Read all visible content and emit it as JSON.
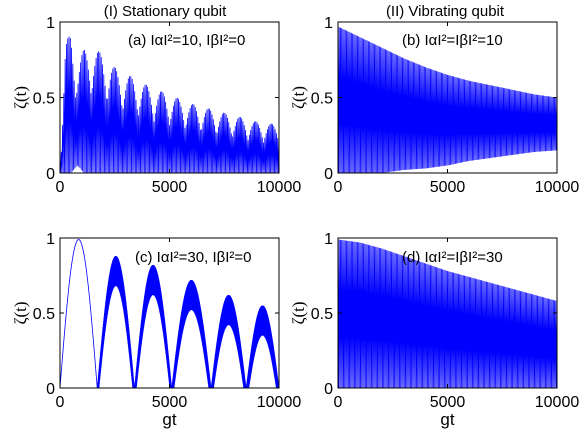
{
  "column_titles": [
    "(I) Stationary qubit",
    "(II) Vibrating qubit"
  ],
  "chart_data": [
    {
      "type": "line",
      "annotation": "(a) IαI²=10, IβI²=0",
      "xlabel": "",
      "ylabel": "ζ(t)",
      "xlim": [
        0,
        10000
      ],
      "ylim": [
        0,
        1
      ],
      "xticks": [
        "0",
        "5000",
        "10000"
      ],
      "yticks": [
        "0",
        "0.5",
        "1"
      ],
      "series_color": "#0000ff",
      "series": [
        {
          "x": [
            0,
            250,
            500,
            800,
            1100,
            1500,
            2000,
            2500,
            3000,
            4000,
            5000,
            6000,
            7000,
            8000,
            9000,
            10000
          ],
          "upper": [
            0,
            0.85,
            0.95,
            0.75,
            0.82,
            0.84,
            0.78,
            0.7,
            0.66,
            0.58,
            0.52,
            0.46,
            0.42,
            0.38,
            0.34,
            0.32
          ],
          "lower": [
            0,
            0.0,
            0.0,
            0.05,
            0.0,
            0.0,
            0.0,
            0.0,
            0.0,
            0.0,
            0.0,
            0.0,
            0.0,
            0.0,
            0.0,
            0.0
          ]
        }
      ]
    },
    {
      "type": "line",
      "annotation": "(b) IαI²=IβI²=10",
      "xlabel": "",
      "ylabel": "ζ(t)",
      "xlim": [
        0,
        10000
      ],
      "ylim": [
        0,
        1
      ],
      "xticks": [
        "0",
        "5000",
        "10000"
      ],
      "yticks": [
        "0",
        "0.5",
        "1"
      ],
      "series_color": "#0000ff",
      "series": [
        {
          "x": [
            0,
            1000,
            2000,
            3000,
            4000,
            5000,
            6000,
            7000,
            8000,
            9000,
            10000
          ],
          "upper": [
            0.97,
            0.9,
            0.83,
            0.76,
            0.7,
            0.65,
            0.61,
            0.58,
            0.55,
            0.52,
            0.5
          ],
          "lower": [
            0.0,
            0.0,
            0.0,
            0.02,
            0.03,
            0.05,
            0.08,
            0.1,
            0.12,
            0.14,
            0.15
          ]
        }
      ]
    },
    {
      "type": "line",
      "annotation": "(c) IαI²=30, IβI²=0",
      "xlabel": "gt",
      "ylabel": "ζ(t)",
      "xlim": [
        0,
        10000
      ],
      "ylim": [
        0,
        1
      ],
      "xticks": [
        "0",
        "5000",
        "10000"
      ],
      "yticks": [
        "0",
        "0.5",
        "1"
      ],
      "series_color": "#0000ff",
      "series": [
        {
          "humps": [
            {
              "start": 0,
              "end": 1700,
              "peak": 0.99
            },
            {
              "start": 1700,
              "end": 3400,
              "peak": 0.88
            },
            {
              "start": 3400,
              "end": 5100,
              "peak": 0.82
            },
            {
              "start": 5100,
              "end": 6900,
              "peak": 0.72
            },
            {
              "start": 6900,
              "end": 8500,
              "peak": 0.62
            },
            {
              "start": 8500,
              "end": 10000,
              "peak": 0.55
            }
          ]
        }
      ]
    },
    {
      "type": "line",
      "annotation": "(d) IαI²=IβI²=30",
      "xlabel": "gt",
      "ylabel": "ζ(t)",
      "xlim": [
        0,
        10000
      ],
      "ylim": [
        0,
        1
      ],
      "xticks": [
        "0",
        "5000",
        "10000"
      ],
      "yticks": [
        "0",
        "0.5",
        "1"
      ],
      "series_color": "#0000ff",
      "series": [
        {
          "x": [
            0,
            1000,
            2000,
            3000,
            4000,
            5000,
            6000,
            7000,
            8000,
            9000,
            10000
          ],
          "upper": [
            0.99,
            0.97,
            0.93,
            0.88,
            0.83,
            0.78,
            0.74,
            0.7,
            0.66,
            0.62,
            0.58
          ],
          "lower": [
            0.0,
            0.0,
            0.0,
            0.0,
            0.0,
            0.0,
            0.0,
            0.0,
            0.0,
            0.0,
            0.0
          ]
        }
      ]
    }
  ]
}
